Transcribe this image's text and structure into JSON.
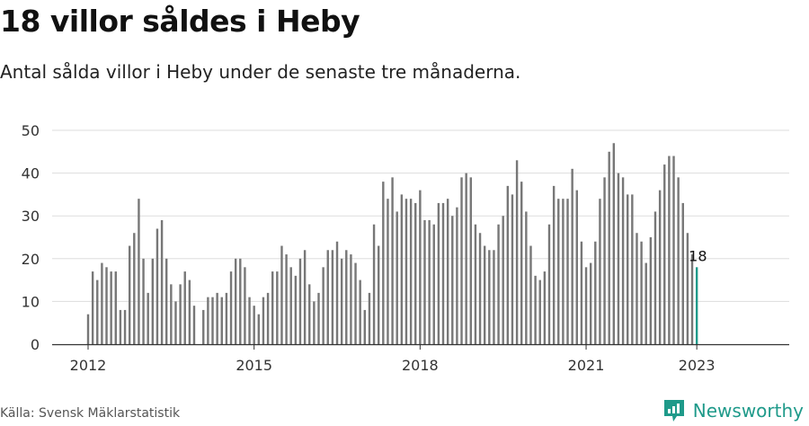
{
  "header": {
    "title": "18 villor såldes i Heby",
    "subtitle": "Antal sålda villor i Heby under de senaste tre månaderna."
  },
  "footer": {
    "source": "Källa: Svensk Mäklarstatistik",
    "brand": "Newsworthy"
  },
  "colors": {
    "bar": "#777777",
    "highlight": "#1f9a8a",
    "grid": "#dddddd",
    "axis": "#333333"
  },
  "chart_data": {
    "type": "bar",
    "title": "18 villor såldes i Heby",
    "subtitle": "Antal sålda villor i Heby under de senaste tre månaderna.",
    "xlabel": "",
    "ylabel": "",
    "ylim": [
      0,
      50
    ],
    "y_ticks": [
      0,
      10,
      20,
      30,
      40,
      50
    ],
    "x_tick_labels": [
      "2012",
      "2015",
      "2018",
      "2021",
      "2023"
    ],
    "x_tick_years": [
      2012,
      2015,
      2018,
      2021,
      2023
    ],
    "grid": true,
    "first_period": "2012-01",
    "period": "month",
    "highlight_label": "18",
    "series": [
      {
        "values": [
          7,
          17,
          15,
          19,
          18,
          17,
          17,
          8,
          8,
          23,
          26,
          34,
          20,
          12,
          20,
          27,
          29,
          20,
          14,
          10,
          14,
          17,
          15,
          9,
          null,
          8,
          11,
          11,
          12,
          11,
          12,
          17,
          20,
          20,
          18,
          11,
          9,
          7,
          11,
          12,
          17,
          17,
          23,
          21,
          18,
          16,
          20,
          22,
          14,
          10,
          12,
          18,
          22,
          22,
          24,
          20,
          22,
          21,
          19,
          15,
          8,
          12,
          28,
          23,
          38,
          34,
          39,
          31,
          35,
          34,
          34,
          33,
          36,
          29,
          29,
          28,
          33,
          33,
          34,
          30,
          32,
          39,
          40,
          39,
          28,
          26,
          23,
          22,
          22,
          28,
          30,
          37,
          35,
          43,
          38,
          31,
          23,
          16,
          15,
          17,
          28,
          37,
          34,
          34,
          34,
          41,
          36,
          24,
          18,
          19,
          24,
          34,
          39,
          45,
          47,
          40,
          39,
          35,
          35,
          26,
          24,
          19,
          25,
          31,
          36,
          42,
          44,
          44,
          39,
          33,
          26,
          21,
          18
        ]
      }
    ]
  }
}
